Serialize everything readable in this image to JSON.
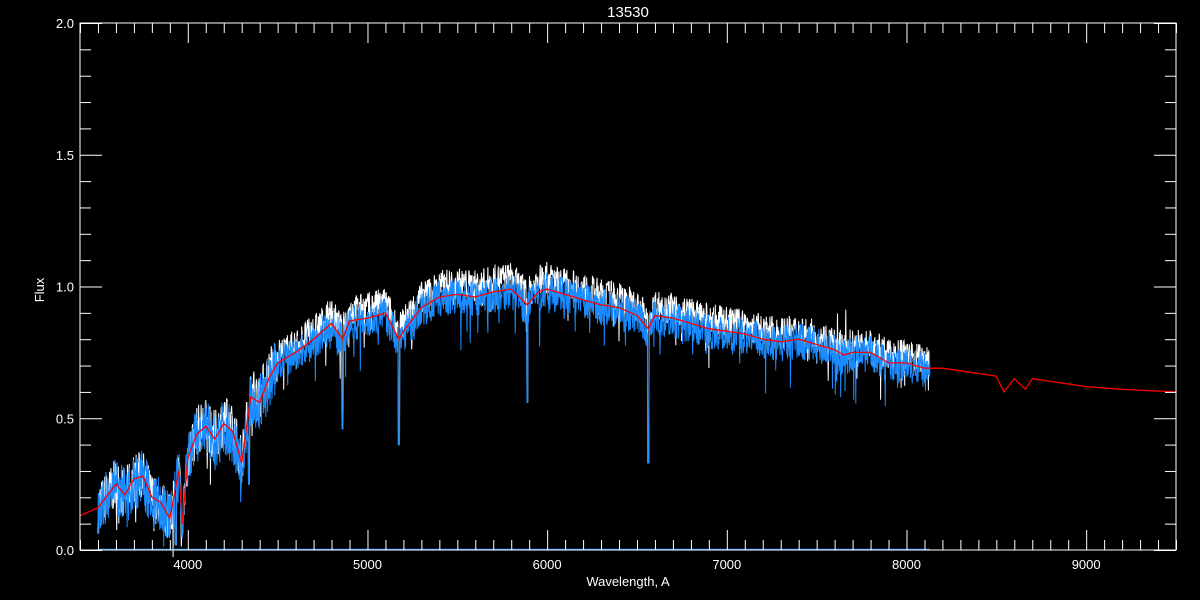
{
  "chart_data": {
    "type": "line",
    "title": "13530",
    "xlabel": "Wavelength, A",
    "ylabel": "Flux",
    "xlim": [
      3400,
      9500
    ],
    "ylim": [
      0,
      2.0
    ],
    "x_ticks": [
      4000,
      5000,
      6000,
      7000,
      8000,
      9000
    ],
    "x_minor_step": 100,
    "y_ticks": [
      "0.0",
      "0.5",
      "1.0",
      "1.5",
      "2.0"
    ],
    "y_minor_step": 0.1,
    "grid": false,
    "colors": {
      "background": "#000000",
      "axes": "#ffffff",
      "observed": "#1a8cff",
      "observed_alt": "#ffffff",
      "model": "#ff0000",
      "error": "#1a8cff"
    },
    "series": [
      {
        "role": "model",
        "x": [
          3400,
          3500,
          3600,
          3650,
          3700,
          3750,
          3800,
          3850,
          3900,
          3950,
          3970,
          4000,
          4050,
          4100,
          4150,
          4200,
          4250,
          4300,
          4350,
          4400,
          4450,
          4500,
          4600,
          4700,
          4800,
          4861,
          4900,
          5000,
          5100,
          5175,
          5200,
          5300,
          5400,
          5500,
          5600,
          5700,
          5800,
          5890,
          5950,
          6000,
          6100,
          6200,
          6300,
          6400,
          6500,
          6563,
          6600,
          6700,
          6800,
          6900,
          7000,
          7100,
          7200,
          7300,
          7400,
          7500,
          7600,
          7650,
          7700,
          7800,
          7900,
          8000,
          8100,
          8200,
          8300,
          8400,
          8498,
          8542,
          8600,
          8662,
          8700,
          8800,
          9000,
          9200,
          9500
        ],
        "y": [
          0.13,
          0.16,
          0.25,
          0.21,
          0.27,
          0.28,
          0.2,
          0.18,
          0.12,
          0.3,
          0.1,
          0.35,
          0.44,
          0.47,
          0.42,
          0.48,
          0.45,
          0.33,
          0.58,
          0.56,
          0.65,
          0.71,
          0.75,
          0.8,
          0.86,
          0.8,
          0.87,
          0.88,
          0.9,
          0.8,
          0.83,
          0.92,
          0.96,
          0.97,
          0.96,
          0.98,
          0.99,
          0.93,
          0.98,
          0.99,
          0.97,
          0.95,
          0.93,
          0.92,
          0.89,
          0.84,
          0.89,
          0.88,
          0.86,
          0.84,
          0.83,
          0.82,
          0.8,
          0.79,
          0.8,
          0.78,
          0.76,
          0.74,
          0.75,
          0.75,
          0.71,
          0.71,
          0.69,
          0.69,
          0.68,
          0.67,
          0.66,
          0.6,
          0.65,
          0.61,
          0.65,
          0.64,
          0.62,
          0.61,
          0.6
        ]
      },
      {
        "role": "observed",
        "x_range": [
          3500,
          8130
        ],
        "absorption_lines": [
          {
            "wavelength": 3933,
            "depth_to": 0.02
          },
          {
            "wavelength": 3968,
            "depth_to": 0.05
          },
          {
            "wavelength": 4340,
            "depth_to": 0.25
          },
          {
            "wavelength": 4861,
            "depth_to": 0.46
          },
          {
            "wavelength": 5175,
            "depth_to": 0.4
          },
          {
            "wavelength": 5890,
            "depth_to": 0.56
          },
          {
            "wavelength": 6563,
            "depth_to": 0.33
          }
        ]
      },
      {
        "role": "error",
        "x_range": [
          3500,
          8130
        ],
        "level": 0.0
      }
    ]
  }
}
